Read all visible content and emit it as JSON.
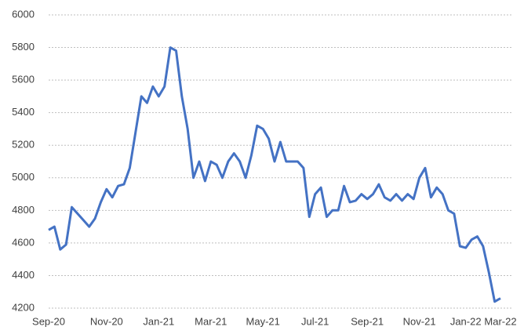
{
  "chart_data": {
    "type": "line",
    "x": [
      "Sep-20",
      null,
      null,
      null,
      null,
      null,
      null,
      null,
      null,
      null,
      "Nov-20",
      null,
      null,
      null,
      null,
      null,
      null,
      null,
      null,
      "Jan-21",
      null,
      null,
      null,
      null,
      null,
      null,
      null,
      null,
      "Mar-21",
      null,
      null,
      null,
      null,
      null,
      null,
      null,
      null,
      "May-21",
      null,
      null,
      null,
      null,
      null,
      null,
      null,
      null,
      "Jul-21",
      null,
      null,
      null,
      null,
      null,
      null,
      null,
      null,
      "Sep-21",
      null,
      null,
      null,
      null,
      null,
      null,
      null,
      null,
      "Nov-21",
      null,
      null,
      null,
      null,
      null,
      null,
      null,
      "Jan-22",
      null,
      null,
      null,
      null,
      null,
      "Mar-22"
    ],
    "series": [
      {
        "color": "#4472c4",
        "values": [
          4680,
          4700,
          4560,
          4590,
          4820,
          4780,
          4740,
          4700,
          4750,
          4850,
          4930,
          4880,
          4950,
          4960,
          5060,
          5280,
          5500,
          5460,
          5560,
          5500,
          5560,
          5800,
          5780,
          5500,
          5300,
          5000,
          5100,
          4980,
          5100,
          5080,
          5000,
          5100,
          5150,
          5100,
          5000,
          5140,
          5320,
          5300,
          5240,
          5100,
          5220,
          5100,
          5100,
          5100,
          5060,
          4760,
          4900,
          4940,
          4760,
          4800,
          4800,
          4950,
          4850,
          4860,
          4900,
          4870,
          4900,
          4960,
          4880,
          4860,
          4900,
          4860,
          4900,
          4870,
          5000,
          5060,
          4880,
          4940,
          4900,
          4800,
          4780,
          4580,
          4570,
          4620,
          4640,
          4580,
          4420,
          4240,
          4260
        ]
      }
    ],
    "ylim": [
      4200,
      6000
    ],
    "yticks": [
      4200,
      4400,
      4600,
      4800,
      5000,
      5200,
      5400,
      5600,
      5800,
      6000
    ],
    "grid": true
  }
}
